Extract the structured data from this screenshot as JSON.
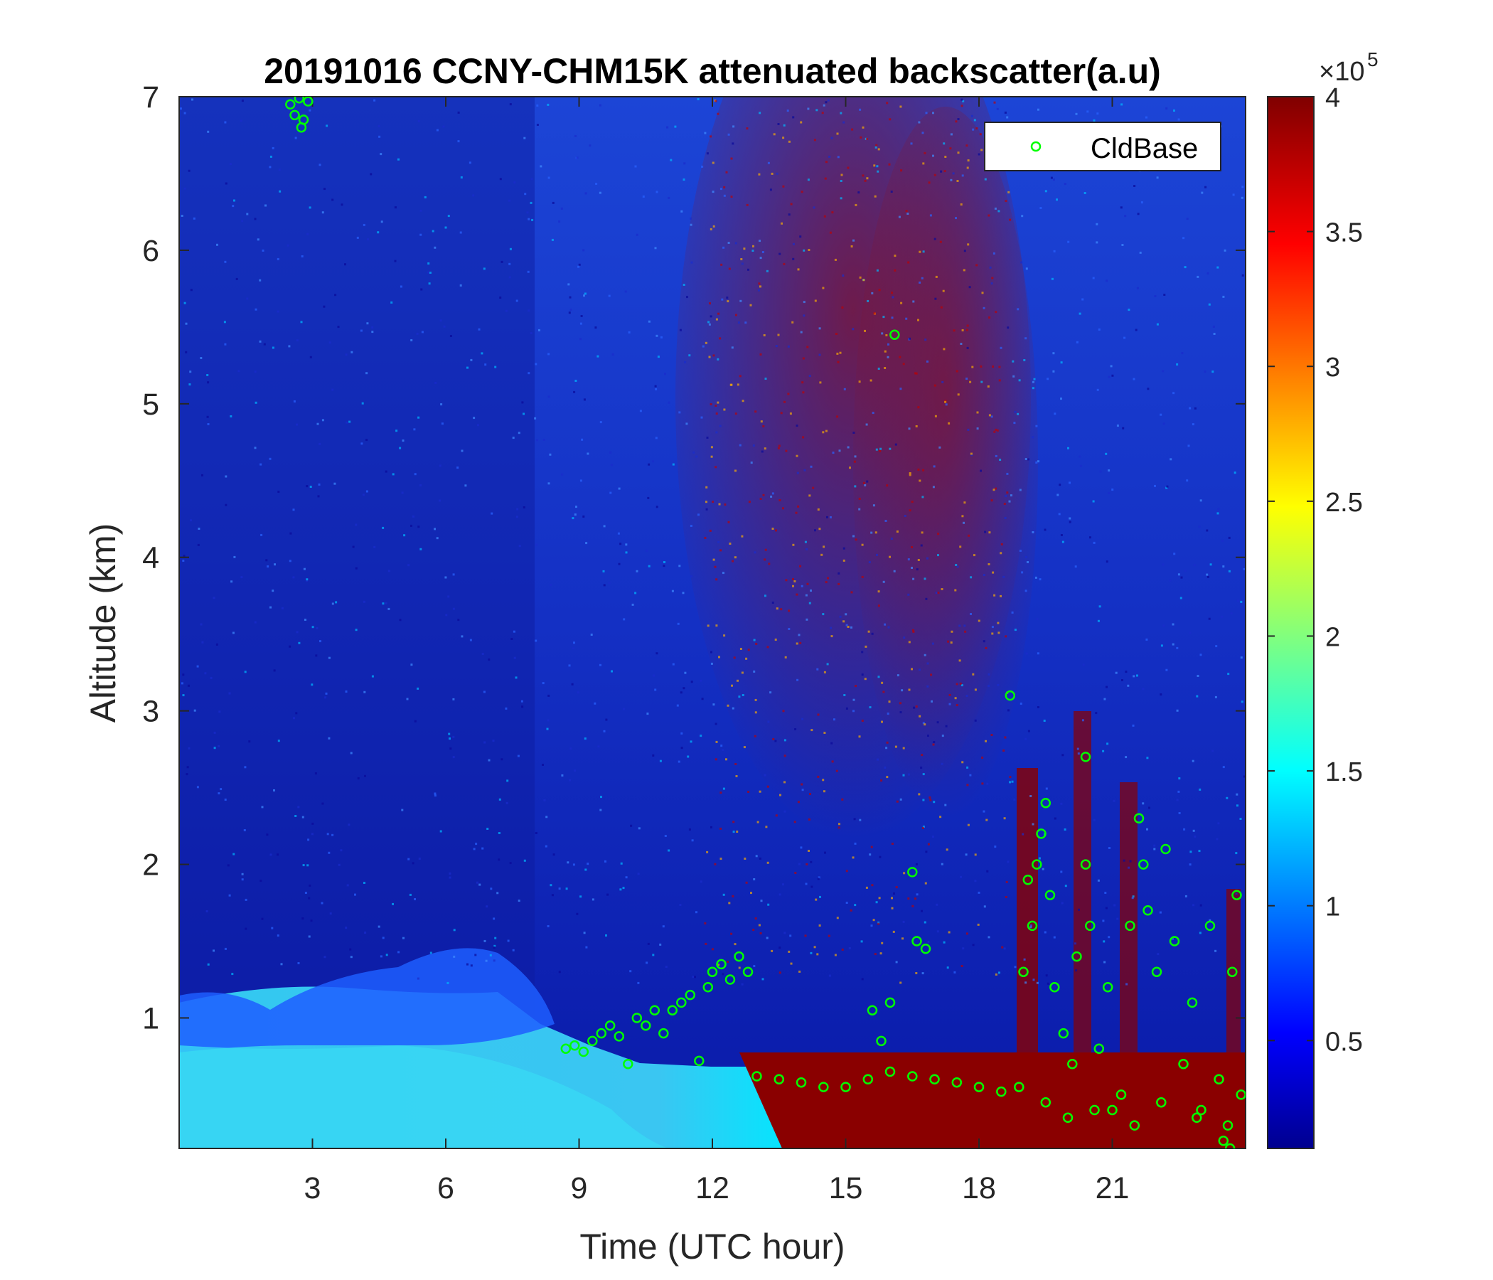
{
  "chart_data": {
    "type": "heatmap",
    "title": "20191016 CCNY-CHM15K attenuated backscatter(a.u)",
    "xlabel": "Time (UTC hour)",
    "ylabel": "Altitude (km)",
    "xlim": [
      0,
      24
    ],
    "ylim": [
      0.15,
      7
    ],
    "xticks": [
      3,
      6,
      9,
      12,
      15,
      18,
      21
    ],
    "yticks": [
      1,
      2,
      3,
      4,
      5,
      6,
      7
    ],
    "colorbar": {
      "colormap": "jet",
      "range": [
        0.1,
        4
      ],
      "ticks": [
        0.5,
        1,
        1.5,
        2,
        2.5,
        3,
        3.5,
        4
      ],
      "tick_labels": [
        "0.5",
        "1",
        "1.5",
        "2",
        "2.5",
        "3",
        "3.5",
        "4"
      ],
      "multiplier": "×10",
      "exponent": "5"
    },
    "legend": {
      "entries": [
        "CldBase"
      ],
      "placement": "top-right"
    },
    "colors": {
      "marker": "#00ff00",
      "axis": "#262626"
    },
    "series": [
      {
        "name": "CldBase",
        "type": "scatter",
        "points": [
          [
            2.5,
            6.95
          ],
          [
            2.6,
            6.88
          ],
          [
            2.7,
            6.99
          ],
          [
            2.8,
            6.85
          ],
          [
            2.9,
            6.97
          ],
          [
            2.75,
            6.8
          ],
          [
            16.1,
            5.45
          ],
          [
            18.7,
            3.1
          ],
          [
            20.4,
            2.7
          ],
          [
            16.5,
            1.95
          ],
          [
            8.7,
            0.8
          ],
          [
            8.9,
            0.82
          ],
          [
            9.1,
            0.78
          ],
          [
            9.3,
            0.85
          ],
          [
            9.5,
            0.9
          ],
          [
            9.7,
            0.95
          ],
          [
            9.9,
            0.88
          ],
          [
            10.1,
            0.7
          ],
          [
            10.3,
            1.0
          ],
          [
            10.5,
            0.95
          ],
          [
            10.7,
            1.05
          ],
          [
            10.9,
            0.9
          ],
          [
            11.1,
            1.05
          ],
          [
            11.3,
            1.1
          ],
          [
            11.5,
            1.15
          ],
          [
            11.7,
            0.72
          ],
          [
            11.9,
            1.2
          ],
          [
            12.0,
            1.3
          ],
          [
            12.2,
            1.35
          ],
          [
            12.4,
            1.25
          ],
          [
            12.6,
            1.4
          ],
          [
            12.8,
            1.3
          ],
          [
            13.0,
            0.62
          ],
          [
            13.5,
            0.6
          ],
          [
            14.0,
            0.58
          ],
          [
            14.5,
            0.55
          ],
          [
            15.0,
            0.55
          ],
          [
            15.5,
            0.6
          ],
          [
            16.0,
            0.65
          ],
          [
            16.5,
            0.62
          ],
          [
            17.0,
            0.6
          ],
          [
            17.5,
            0.58
          ],
          [
            18.0,
            0.55
          ],
          [
            18.5,
            0.52
          ],
          [
            18.9,
            0.55
          ],
          [
            16.6,
            1.5
          ],
          [
            16.8,
            1.45
          ],
          [
            15.8,
            0.85
          ],
          [
            15.6,
            1.05
          ],
          [
            16.0,
            1.1
          ],
          [
            19.0,
            1.3
          ],
          [
            19.1,
            1.9
          ],
          [
            19.2,
            1.6
          ],
          [
            19.3,
            2.0
          ],
          [
            19.4,
            2.2
          ],
          [
            19.5,
            2.4
          ],
          [
            19.6,
            1.8
          ],
          [
            19.7,
            1.2
          ],
          [
            19.9,
            0.9
          ],
          [
            20.1,
            0.7
          ],
          [
            20.2,
            1.4
          ],
          [
            20.4,
            2.0
          ],
          [
            20.5,
            1.6
          ],
          [
            20.7,
            0.8
          ],
          [
            20.9,
            1.2
          ],
          [
            21.0,
            0.4
          ],
          [
            21.2,
            0.5
          ],
          [
            21.4,
            1.6
          ],
          [
            21.6,
            2.3
          ],
          [
            21.7,
            2.0
          ],
          [
            21.8,
            1.7
          ],
          [
            22.0,
            1.3
          ],
          [
            22.2,
            2.1
          ],
          [
            22.4,
            1.5
          ],
          [
            22.6,
            0.7
          ],
          [
            22.8,
            1.1
          ],
          [
            23.0,
            0.4
          ],
          [
            23.2,
            1.6
          ],
          [
            23.4,
            0.6
          ],
          [
            23.6,
            0.3
          ],
          [
            23.7,
            1.3
          ],
          [
            23.8,
            1.8
          ],
          [
            23.9,
            0.5
          ],
          [
            19.5,
            0.45
          ],
          [
            20.0,
            0.35
          ],
          [
            20.6,
            0.4
          ],
          [
            21.5,
            0.3
          ],
          [
            22.1,
            0.45
          ],
          [
            22.9,
            0.35
          ],
          [
            23.5,
            0.2
          ],
          [
            23.65,
            0.15
          ]
        ]
      }
    ]
  }
}
